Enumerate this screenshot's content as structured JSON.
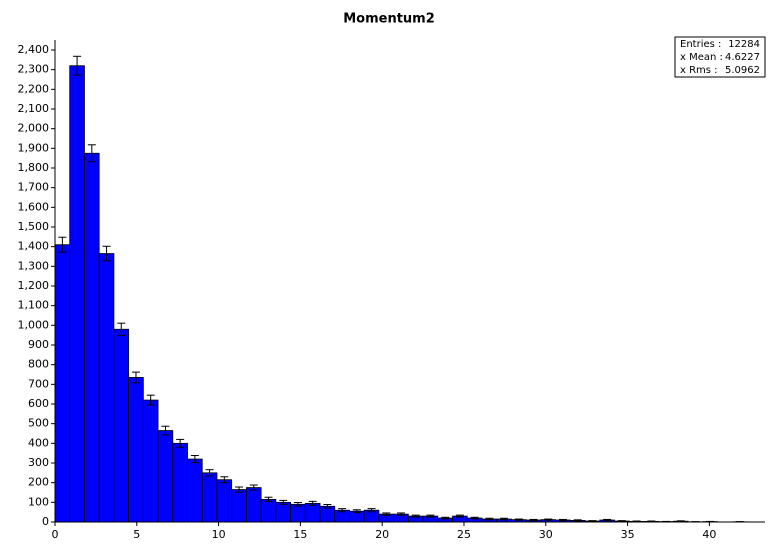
{
  "chart_data": {
    "type": "histogram",
    "title": "Momentum2",
    "bins": [
      0,
      0.9,
      1.8,
      2.7,
      3.6,
      4.5,
      5.4,
      6.3,
      7.2,
      8.1,
      9,
      9.9,
      10.8,
      11.7,
      12.6,
      13.5,
      14.4,
      15.3,
      16.2,
      17.1,
      18,
      18.9,
      19.8,
      20.7,
      21.6,
      22.5,
      23.4,
      24.3,
      25.2,
      26.1,
      27,
      27.9,
      28.8,
      29.7,
      30.6,
      31.5,
      32.4,
      33.3,
      34.2,
      35.1,
      36,
      36.9,
      37.8,
      38.7,
      39.6,
      40.5,
      41.4,
      42.3,
      43.2
    ],
    "values": [
      1410,
      2320,
      1875,
      1365,
      980,
      735,
      620,
      465,
      400,
      320,
      250,
      215,
      165,
      175,
      115,
      100,
      90,
      95,
      80,
      60,
      55,
      60,
      40,
      40,
      30,
      30,
      20,
      30,
      20,
      15,
      15,
      12,
      10,
      12,
      10,
      8,
      5,
      10,
      5,
      3,
      3,
      2,
      4,
      1,
      2,
      0,
      1,
      0
    ],
    "errors": [
      38,
      48,
      43,
      37,
      31,
      27,
      25,
      22,
      20,
      18,
      16,
      15,
      13,
      13,
      11,
      10,
      9,
      10,
      9,
      8,
      7,
      8,
      6,
      6,
      5,
      5,
      4,
      5,
      4,
      4,
      4,
      3,
      3,
      3,
      3,
      3,
      2,
      3,
      2,
      2,
      2,
      1,
      2,
      1,
      1,
      0,
      1,
      0
    ],
    "color": "#0000ff",
    "xlim": [
      0,
      43.4
    ],
    "ylim": [
      0,
      2400
    ],
    "xticks": [
      0,
      5,
      10,
      15,
      20,
      25,
      30,
      35,
      40
    ],
    "yticks": [
      0,
      100,
      200,
      300,
      400,
      500,
      600,
      700,
      800,
      900,
      {
        "value": 1000,
        "label": "1,000"
      },
      {
        "value": 1100,
        "label": "1,100"
      },
      {
        "value": 1200,
        "label": "1,200"
      },
      {
        "value": 1300,
        "label": "1,300"
      },
      {
        "value": 1400,
        "label": "1,400"
      },
      {
        "value": 1500,
        "label": "1,500"
      },
      {
        "value": 1600,
        "label": "1,600"
      },
      {
        "value": 1700,
        "label": "1,700"
      },
      {
        "value": 1800,
        "label": "1,800"
      },
      {
        "value": 1900,
        "label": "1,900"
      },
      {
        "value": 2000,
        "label": "2,000"
      },
      {
        "value": 2100,
        "label": "2,100"
      },
      {
        "value": 2200,
        "label": "2,200"
      },
      {
        "value": 2300,
        "label": "2,300"
      },
      {
        "value": 2400,
        "label": "2,400"
      }
    ],
    "grid": false,
    "stats": [
      {
        "label": "Entries :",
        "value": 12284
      },
      {
        "label": "x Mean :",
        "value": 4.6227
      },
      {
        "label": "x Rms :",
        "value": 5.0962
      }
    ]
  }
}
